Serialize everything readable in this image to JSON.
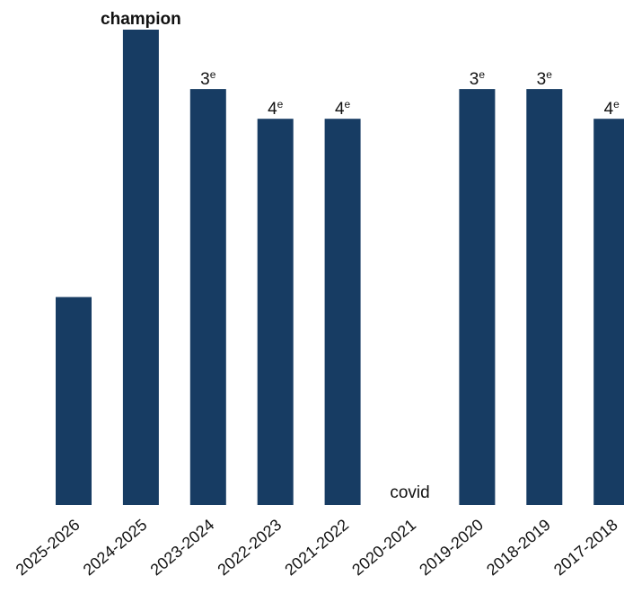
{
  "chart_data": {
    "type": "bar",
    "categories": [
      "2025-2026",
      "2024-2025",
      "2023-2024",
      "2022-2023",
      "2021-2022",
      "2020-2021",
      "2019-2020",
      "2018-2019",
      "2017-2018"
    ],
    "values": [
      7,
      16,
      14,
      13,
      13,
      0,
      14,
      14,
      13
    ],
    "data_labels": [
      {
        "main": "",
        "sup": ""
      },
      {
        "main": "champion",
        "sup": ""
      },
      {
        "main": "3",
        "sup": "e"
      },
      {
        "main": "4",
        "sup": "e"
      },
      {
        "main": "4",
        "sup": "e"
      },
      {
        "main": "covid",
        "sup": ""
      },
      {
        "main": "3",
        "sup": "e"
      },
      {
        "main": "3",
        "sup": "e"
      },
      {
        "main": "4",
        "sup": "e"
      }
    ],
    "ylim": [
      0,
      16
    ],
    "bar_color": "#173c63",
    "title": "",
    "xlabel": "",
    "ylabel": "",
    "grid": false,
    "legend": "none"
  }
}
